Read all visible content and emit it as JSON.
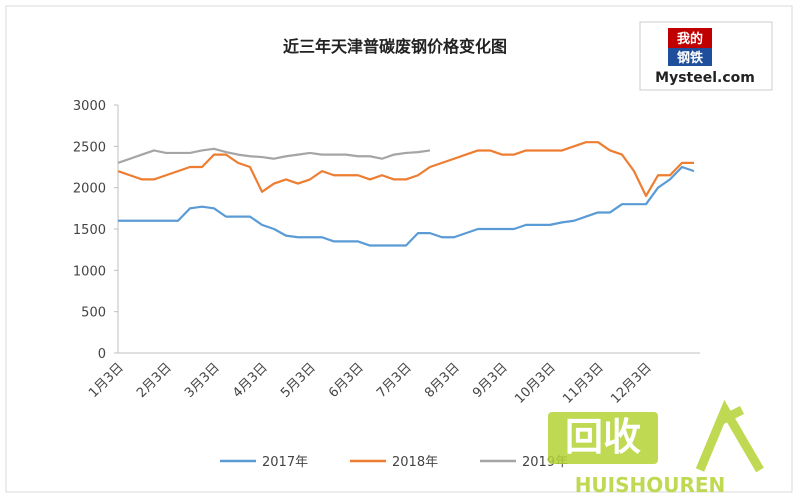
{
  "chart_data": {
    "type": "line",
    "title": "近三年天津普碳废钢价格变化图",
    "categories": [
      "1月3日",
      null,
      null,
      null,
      "2月3日",
      null,
      null,
      null,
      "3月3日",
      null,
      null,
      null,
      "4月3日",
      null,
      null,
      null,
      "5月3日",
      null,
      null,
      null,
      "6月3日",
      null,
      null,
      null,
      "7月3日",
      null,
      null,
      null,
      "8月3日",
      null,
      null,
      null,
      "9月3日",
      null,
      null,
      null,
      "10月3日",
      null,
      null,
      null,
      "11月3日",
      null,
      null,
      null,
      "12月3日",
      null,
      null,
      null,
      null
    ],
    "series": [
      {
        "name": "2017年",
        "color": "#5b9bd5",
        "values": [
          1600,
          1600,
          1600,
          1600,
          1600,
          1600,
          1750,
          1770,
          1750,
          1650,
          1650,
          1650,
          1550,
          1500,
          1420,
          1400,
          1400,
          1400,
          1350,
          1350,
          1350,
          1300,
          1300,
          1300,
          1300,
          1450,
          1450,
          1400,
          1400,
          1450,
          1500,
          1500,
          1500,
          1500,
          1550,
          1550,
          1550,
          1580,
          1600,
          1650,
          1700,
          1700,
          1800,
          1800,
          1800,
          2000,
          2100,
          2250,
          2200
        ]
      },
      {
        "name": "2018年",
        "color": "#ed7d31",
        "values": [
          2200,
          2150,
          2100,
          2100,
          2150,
          2200,
          2250,
          2250,
          2400,
          2400,
          2300,
          2250,
          1950,
          2050,
          2100,
          2050,
          2100,
          2200,
          2150,
          2150,
          2150,
          2100,
          2150,
          2100,
          2100,
          2150,
          2250,
          2300,
          2350,
          2400,
          2450,
          2450,
          2400,
          2400,
          2450,
          2450,
          2450,
          2450,
          2500,
          2550,
          2550,
          2450,
          2400,
          2200,
          1900,
          2150,
          2150,
          2300,
          2300
        ]
      },
      {
        "name": "2019年",
        "color": "#a5a5a5",
        "values": [
          2300,
          2350,
          2400,
          2450,
          2420,
          2420,
          2420,
          2450,
          2470,
          2430,
          2400,
          2380,
          2370,
          2350,
          2380,
          2400,
          2420,
          2400,
          2400,
          2400,
          2380,
          2380,
          2350,
          2400,
          2420,
          2430,
          2450,
          null,
          null,
          null,
          null,
          null,
          null,
          null,
          null,
          null,
          null,
          null,
          null,
          null,
          null,
          null,
          null,
          null,
          null,
          null,
          null,
          null,
          null
        ]
      }
    ],
    "ylim": [
      0,
      3000
    ],
    "yticks": [
      0,
      500,
      1000,
      1500,
      2000,
      2500,
      3000
    ],
    "grid": false,
    "legend": "bottom"
  },
  "logo": {
    "top": "我的",
    "bottom": "钢铁",
    "brand": "Mysteel.com"
  },
  "watermark": {
    "mark": "回收",
    "brand": "HUISHOUREN"
  }
}
